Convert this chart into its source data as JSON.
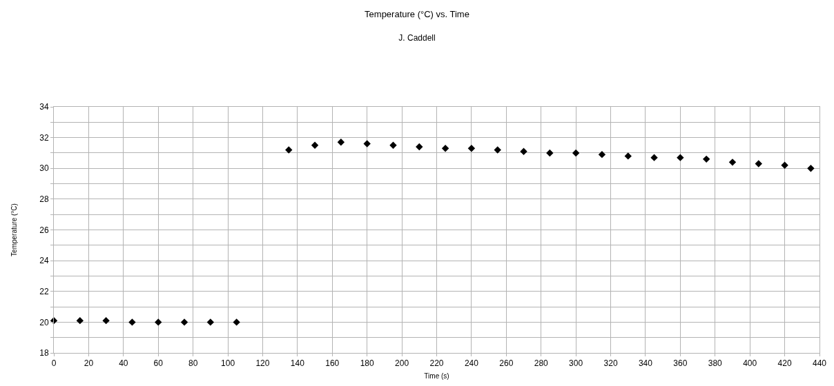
{
  "chart_data": {
    "type": "scatter",
    "title": "Temperature (°C) vs. Time",
    "subtitle": "J. Caddell",
    "xlabel": "Time (s)",
    "ylabel": "Temperature (°C)",
    "x": [
      0,
      15,
      30,
      45,
      60,
      75,
      90,
      105,
      135,
      150,
      165,
      180,
      195,
      210,
      225,
      240,
      255,
      270,
      285,
      300,
      315,
      330,
      345,
      360,
      375,
      390,
      405,
      420,
      435
    ],
    "series": [
      {
        "color": "#000000",
        "values": [
          20.1,
          20.1,
          20.1,
          20.0,
          20.0,
          20.0,
          20.0,
          20.0,
          31.2,
          31.5,
          31.7,
          31.6,
          31.5,
          31.4,
          31.3,
          31.3,
          31.2,
          31.1,
          31.0,
          31.0,
          30.9,
          30.8,
          30.7,
          30.7,
          30.6,
          30.4,
          30.3,
          30.2,
          30.0
        ]
      }
    ],
    "xlim": [
      0,
      440
    ],
    "xticks": [
      0,
      20,
      40,
      60,
      80,
      100,
      120,
      140,
      160,
      180,
      200,
      220,
      240,
      260,
      280,
      300,
      320,
      340,
      360,
      380,
      400,
      420,
      440
    ],
    "ylim": [
      18,
      34
    ],
    "yticks": [
      18,
      {
        "value": 19,
        "label": null
      },
      20,
      {
        "value": 21,
        "label": null
      },
      22,
      {
        "value": 23,
        "label": null
      },
      24,
      {
        "value": 25,
        "label": null
      },
      26,
      {
        "value": 27,
        "label": null
      },
      28,
      {
        "value": 29,
        "label": null
      },
      30,
      {
        "value": 31,
        "label": null
      },
      32,
      {
        "value": 33,
        "label": null
      },
      34
    ],
    "grid": true,
    "marker": "diamond"
  }
}
